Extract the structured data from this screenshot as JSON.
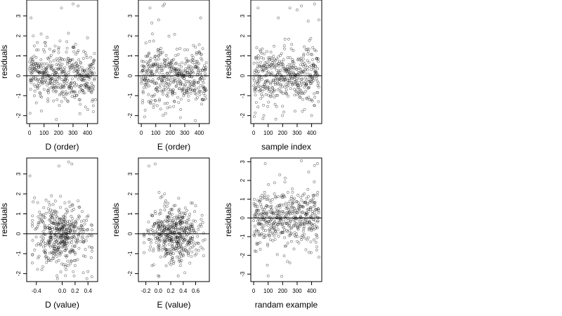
{
  "figure": {
    "colors": {
      "background": "#ffffff",
      "frame": "#000000",
      "points": "#000000",
      "reference_line": "#000000"
    }
  },
  "chart_data": [
    {
      "type": "scatter",
      "title": "",
      "xlabel": "D (order)",
      "ylabel": "residuals",
      "xlim": [
        -20,
        470
      ],
      "ylim": [
        -2.4,
        3.8
      ],
      "xticks": [
        "0",
        "100",
        "200",
        "300",
        "400"
      ],
      "yticks": [
        "-2",
        "-1",
        "0",
        "1",
        "2",
        "3"
      ],
      "reference_line_y": 0,
      "grid": false,
      "n_points": 460,
      "point_shape": "open circle",
      "sample_points": [
        [
          10,
          2.9
        ],
        [
          25,
          2.0
        ],
        [
          60,
          1.3
        ],
        [
          120,
          0.6
        ],
        [
          170,
          -0.4
        ],
        [
          185,
          -2.2
        ],
        [
          220,
          3.4
        ],
        [
          250,
          -0.8
        ],
        [
          300,
          3.6
        ],
        [
          310,
          -1.0
        ],
        [
          335,
          3.5
        ],
        [
          400,
          1.9
        ],
        [
          440,
          -1.8
        ],
        [
          455,
          -1.2
        ]
      ]
    },
    {
      "type": "scatter",
      "title": "",
      "xlabel": "E (order)",
      "ylabel": "residuals",
      "xlim": [
        -20,
        470
      ],
      "ylim": [
        -2.4,
        3.8
      ],
      "xticks": [
        "0",
        "100",
        "200",
        "300",
        "400"
      ],
      "yticks": [
        "-2",
        "-1",
        "0",
        "1",
        "2",
        "3"
      ],
      "reference_line_y": 0,
      "grid": false,
      "n_points": 460,
      "point_shape": "open circle",
      "sample_points": [
        [
          60,
          3.4
        ],
        [
          120,
          2.8
        ],
        [
          150,
          3.5
        ],
        [
          160,
          3.6
        ],
        [
          110,
          -1.5
        ],
        [
          230,
          -1.3
        ],
        [
          270,
          -2.1
        ],
        [
          320,
          1.3
        ],
        [
          410,
          2.9
        ],
        [
          440,
          -1.0
        ]
      ]
    },
    {
      "type": "scatter",
      "title": "",
      "xlabel": "sample index",
      "ylabel": "residuals",
      "xlim": [
        -20,
        470
      ],
      "ylim": [
        -2.4,
        3.8
      ],
      "xticks": [
        "0",
        "100",
        "200",
        "300",
        "400"
      ],
      "yticks": [
        "-2",
        "-1",
        "0",
        "1",
        "2",
        "3"
      ],
      "reference_line_y": 0,
      "grid": false,
      "n_points": 460,
      "point_shape": "open circle",
      "sample_points": [
        [
          30,
          3.4
        ],
        [
          70,
          -2.0
        ],
        [
          170,
          2.9
        ],
        [
          250,
          3.4
        ],
        [
          300,
          3.3
        ],
        [
          330,
          3.5
        ],
        [
          420,
          3.6
        ],
        [
          450,
          2.8
        ],
        [
          400,
          -2.0
        ]
      ]
    },
    {
      "type": "scatter",
      "title": "",
      "xlabel": "D (value)",
      "ylabel": "residuals",
      "xlim": [
        -0.55,
        0.55
      ],
      "ylim": [
        -2.4,
        3.8
      ],
      "xticks": [
        "-0.4",
        "0.0",
        "0.2",
        "0.4"
      ],
      "yticks": [
        "-2",
        "-1",
        "0",
        "1",
        "2",
        "3"
      ],
      "reference_line_y": 0,
      "grid": false,
      "n_points": 460,
      "point_shape": "open circle",
      "sample_points": [
        [
          -0.5,
          2.9
        ],
        [
          -0.45,
          1.6
        ],
        [
          -0.05,
          3.4
        ],
        [
          0.1,
          3.6
        ],
        [
          0.15,
          3.5
        ],
        [
          0.05,
          -2.1
        ],
        [
          0.2,
          -1.6
        ],
        [
          0.4,
          -1.9
        ],
        [
          0.45,
          -1.2
        ]
      ]
    },
    {
      "type": "scatter",
      "title": "",
      "xlabel": "E (value)",
      "ylabel": "residuals",
      "xlim": [
        -0.32,
        0.82
      ],
      "ylim": [
        -2.4,
        3.8
      ],
      "xticks": [
        "-0.2",
        "0.0",
        "0.2",
        "0.4",
        "0.6"
      ],
      "yticks": [
        "-2",
        "-1",
        "0",
        "1",
        "2",
        "3"
      ],
      "reference_line_y": 0,
      "grid": false,
      "n_points": 460,
      "point_shape": "open circle",
      "sample_points": [
        [
          -0.15,
          3.4
        ],
        [
          -0.05,
          3.5
        ],
        [
          0.1,
          2.0
        ],
        [
          0.25,
          1.4
        ],
        [
          0.6,
          1.4
        ],
        [
          0.75,
          -0.3
        ],
        [
          -0.1,
          -1.6
        ],
        [
          0.0,
          -2.1
        ],
        [
          0.25,
          -1.4
        ]
      ]
    },
    {
      "type": "scatter",
      "title": "",
      "xlabel": "randam example",
      "ylabel": "residuals",
      "xlim": [
        -20,
        470
      ],
      "ylim": [
        -3.4,
        3.2
      ],
      "xticks": [
        "0",
        "100",
        "200",
        "300",
        "400"
      ],
      "yticks": [
        "-3",
        "-2",
        "-1",
        "0",
        "1",
        "2",
        "3"
      ],
      "reference_line_y": 0,
      "grid": false,
      "n_points": 460,
      "point_shape": "open circle",
      "sample_points": [
        [
          80,
          2.9
        ],
        [
          100,
          -3.1
        ],
        [
          180,
          2.3
        ],
        [
          250,
          -2.4
        ],
        [
          420,
          2.8
        ],
        [
          440,
          2.9
        ],
        [
          450,
          -2.1
        ]
      ]
    }
  ]
}
